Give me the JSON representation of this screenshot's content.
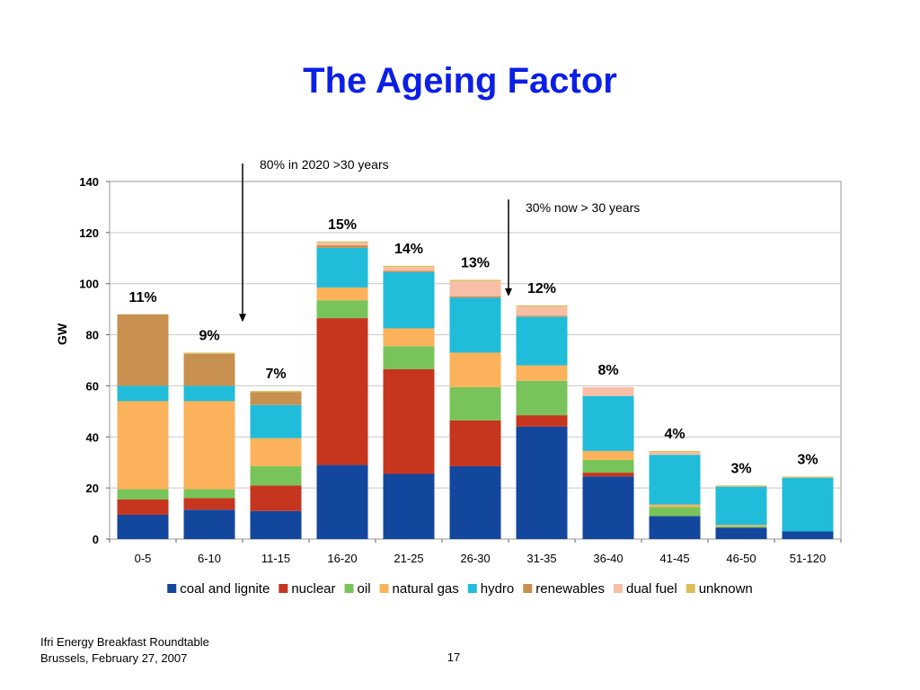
{
  "slide": {
    "title": "The Ageing Factor",
    "footer_line1": "Ifri Energy Breakfast Roundtable",
    "footer_line2": "Brussels, February 27, 2007",
    "page_number": "17"
  },
  "colors": {
    "coal and lignite": "#13479e",
    "nuclear": "#c6361f",
    "oil": "#78c45a",
    "natural gas": "#fbb25a",
    "hydro": "#21bcd9",
    "renewables": "#c8904f",
    "dual fuel": "#f6bfa6",
    "unknown": "#d9be5a",
    "title": "#0b1fe6"
  },
  "chart_data": {
    "type": "bar",
    "stacked": true,
    "title": "",
    "xlabel": "",
    "ylabel": "GW",
    "ylim": [
      0,
      140
    ],
    "yticks": [
      0,
      20,
      40,
      60,
      80,
      100,
      120,
      140
    ],
    "grid": true,
    "legend_position": "bottom",
    "categories": [
      "0-5",
      "6-10",
      "11-15",
      "16-20",
      "21-25",
      "26-30",
      "31-35",
      "36-40",
      "41-45",
      "46-50",
      "51-120"
    ],
    "series": [
      {
        "name": "coal and lignite",
        "values": [
          9.5,
          11.5,
          11,
          29,
          25.5,
          28.5,
          44,
          24.5,
          9,
          4.5,
          3
        ]
      },
      {
        "name": "nuclear",
        "values": [
          6,
          4.5,
          10,
          57.5,
          41,
          18,
          4.5,
          1.5,
          0,
          0,
          0
        ]
      },
      {
        "name": "oil",
        "values": [
          4,
          3.5,
          7.5,
          7,
          9,
          13,
          13.5,
          5,
          3.5,
          0.5,
          0
        ]
      },
      {
        "name": "natural gas",
        "values": [
          34.5,
          34.5,
          11,
          5,
          7,
          13.5,
          6,
          3.5,
          1,
          0.5,
          0
        ]
      },
      {
        "name": "hydro",
        "values": [
          6,
          6,
          13,
          15.5,
          22,
          21.5,
          19,
          21.5,
          19.5,
          15,
          21
        ]
      },
      {
        "name": "renewables",
        "values": [
          28,
          12.5,
          5,
          1,
          0.5,
          0.5,
          0.5,
          0,
          0,
          0,
          0
        ]
      },
      {
        "name": "dual fuel",
        "values": [
          0,
          0,
          0,
          1,
          1.5,
          6,
          3.5,
          3.5,
          1,
          0,
          0
        ]
      },
      {
        "name": "unknown",
        "values": [
          0,
          0.5,
          0.5,
          0.5,
          0.5,
          0.5,
          0.5,
          0,
          0.5,
          0.5,
          0.5
        ]
      }
    ],
    "data_labels": [
      "11%",
      "9%",
      "7%",
      "15%",
      "14%",
      "13%",
      "12%",
      "8%",
      "4%",
      "3%",
      "3%"
    ],
    "annotations": [
      {
        "text": "80% in 2020 >30 years",
        "arrow_category_boundary": "6-10|11-15"
      },
      {
        "text": "30% now > 30 years",
        "arrow_category_boundary": "26-30|31-35"
      }
    ]
  }
}
